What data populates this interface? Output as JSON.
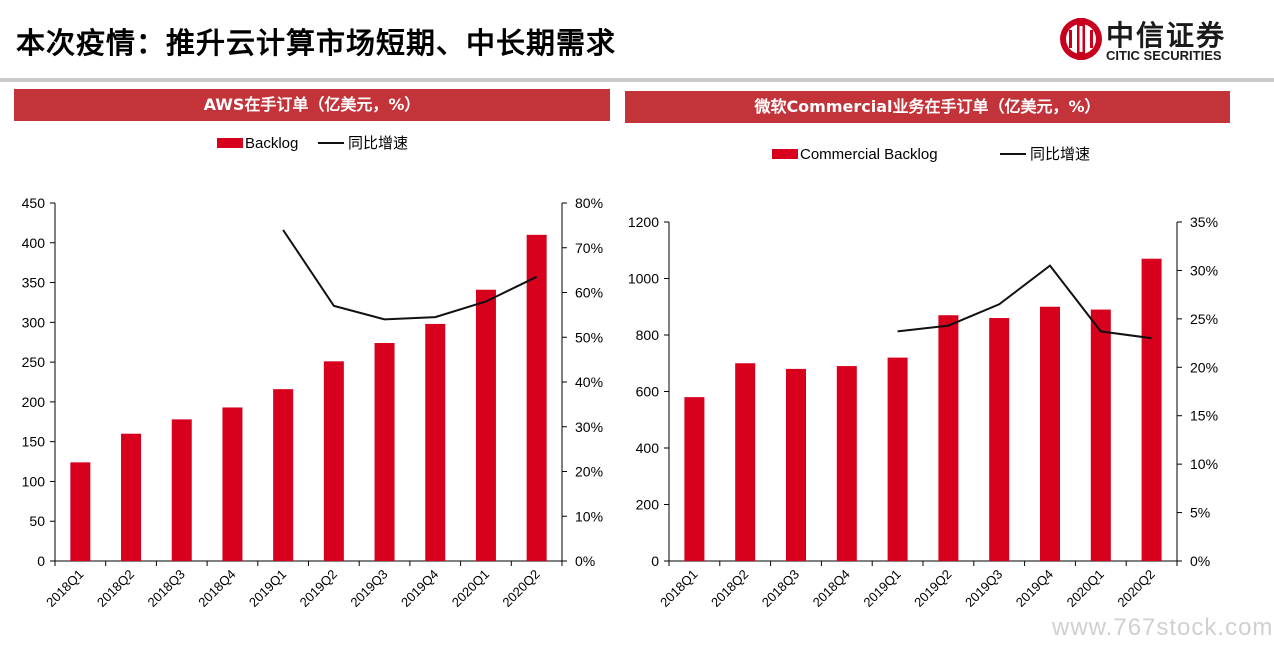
{
  "header": {
    "title": "本次疫情：推升云计算市场短期、中长期需求",
    "logo_cn": "中信证券",
    "logo_en": "CITIC SECURITIES"
  },
  "colors": {
    "bar": "#d7001d",
    "line": "#111111",
    "panel_title_bg": "#c3333a"
  },
  "watermark": "www.767stock.com",
  "chart_data": [
    {
      "type": "bar",
      "title": "AWS在手订单（亿美元，%）",
      "categories": [
        "2018Q1",
        "2018Q2",
        "2018Q3",
        "2018Q4",
        "2019Q1",
        "2019Q2",
        "2019Q3",
        "2019Q4",
        "2020Q1",
        "2020Q2"
      ],
      "series": [
        {
          "name": "Backlog",
          "kind": "bar",
          "axis": "left",
          "values": [
            124,
            160,
            178,
            193,
            216,
            251,
            274,
            298,
            341,
            410
          ]
        },
        {
          "name": "同比增速",
          "kind": "line",
          "axis": "right",
          "values": [
            null,
            null,
            null,
            null,
            0.74,
            0.57,
            0.54,
            0.545,
            0.58,
            0.635
          ]
        }
      ],
      "ylim": [
        0,
        450
      ],
      "yticks": [
        0,
        50,
        100,
        150,
        200,
        250,
        300,
        350,
        400,
        450
      ],
      "y2lim": [
        0,
        0.8
      ],
      "y2ticks": [
        "0%",
        "10%",
        "20%",
        "30%",
        "40%",
        "50%",
        "60%",
        "70%",
        "80%"
      ],
      "legend": [
        "Backlog",
        "同比增速"
      ],
      "legend_position": "top-center",
      "grid": false
    },
    {
      "type": "bar",
      "title": "微软Commercial业务在手订单（亿美元，%）",
      "categories": [
        "2018Q1",
        "2018Q2",
        "2018Q3",
        "2018Q4",
        "2019Q1",
        "2019Q2",
        "2019Q3",
        "2019Q4",
        "2020Q1",
        "2020Q2"
      ],
      "series": [
        {
          "name": "Commercial Backlog",
          "kind": "bar",
          "axis": "left",
          "values": [
            580,
            700,
            680,
            690,
            720,
            870,
            860,
            900,
            890,
            1070
          ]
        },
        {
          "name": "同比增速",
          "kind": "line",
          "axis": "right",
          "values": [
            null,
            null,
            null,
            null,
            0.237,
            0.243,
            0.265,
            0.305,
            0.237,
            0.23
          ]
        }
      ],
      "ylim": [
        0,
        1200
      ],
      "yticks": [
        0,
        200,
        400,
        600,
        800,
        1000,
        1200
      ],
      "y2lim": [
        0,
        0.35
      ],
      "y2ticks": [
        "0%",
        "5%",
        "10%",
        "15%",
        "20%",
        "25%",
        "30%",
        "35%"
      ],
      "legend": [
        "Commercial Backlog",
        "同比增速"
      ],
      "legend_position": "top-center",
      "grid": false
    }
  ]
}
